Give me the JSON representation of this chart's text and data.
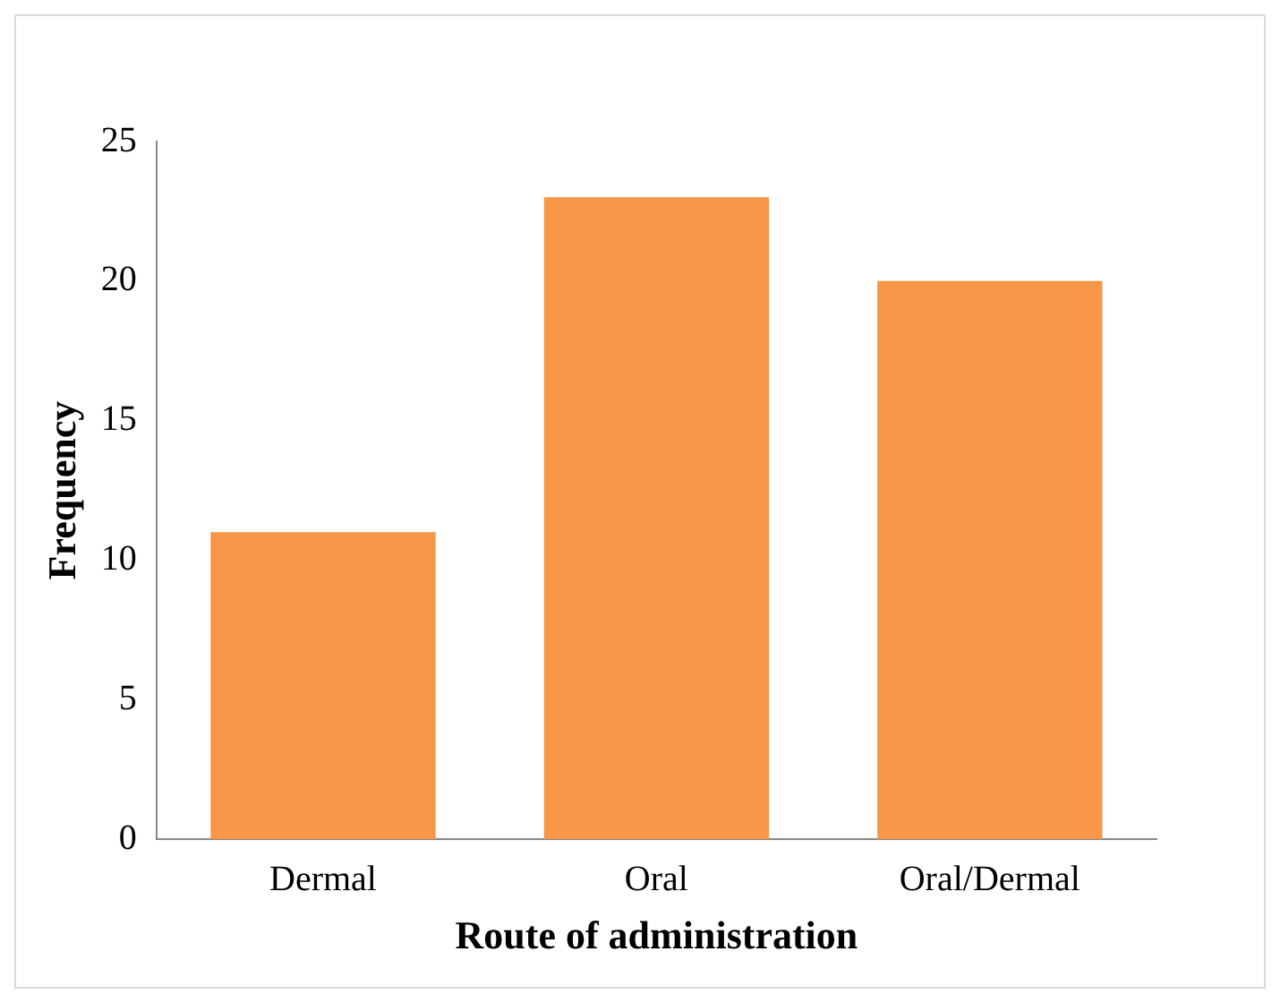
{
  "chart_data": {
    "type": "bar",
    "xlabel": "Route of administration",
    "ylabel": "Frequency",
    "categories": [
      "Dermal",
      "Oral",
      "Oral/Dermal"
    ],
    "values": [
      11,
      23,
      20
    ],
    "color": "#f79646",
    "ylim": [
      0,
      25
    ],
    "yticks": [
      0,
      5,
      10,
      15,
      20,
      25
    ],
    "grid": false,
    "legend": false
  }
}
